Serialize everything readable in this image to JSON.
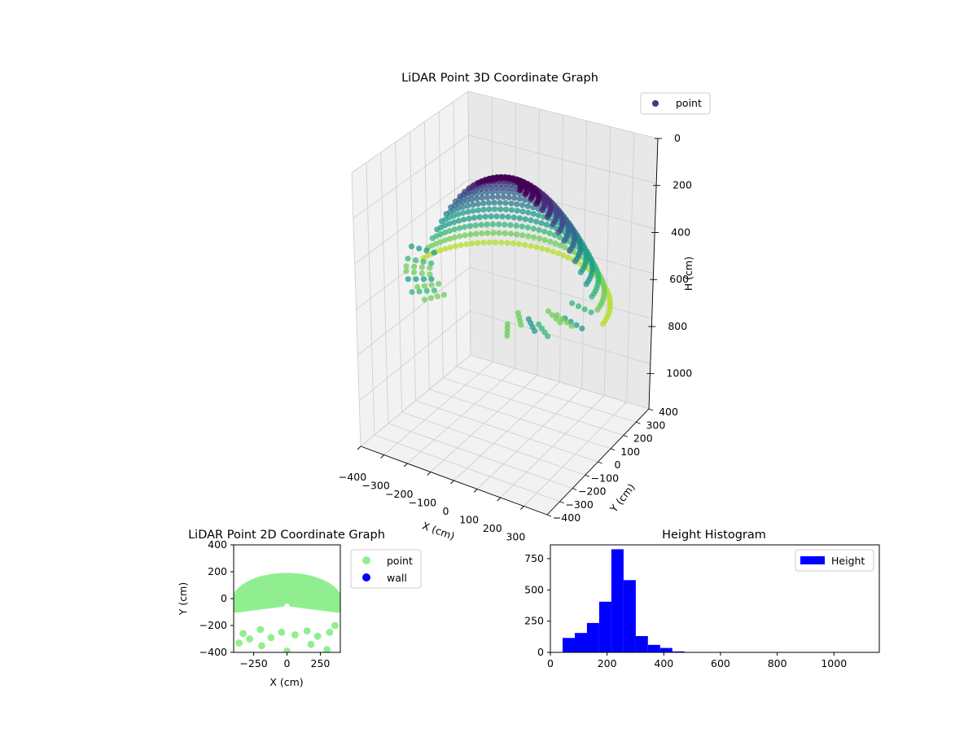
{
  "chart_data": [
    {
      "type": "scatter",
      "projection": "3d",
      "title": "LiDAR Point 3D Coordinate Graph",
      "xlabel": "X (cm)",
      "ylabel": "Y (cm)",
      "zlabel": "H (cm)",
      "x_ticks": [
        -400,
        -300,
        -200,
        -100,
        0,
        100,
        200,
        300
      ],
      "y_ticks": [
        -400,
        -300,
        -200,
        -100,
        0,
        100,
        200,
        300,
        400
      ],
      "z_ticks": [
        0,
        200,
        400,
        600,
        800,
        1000
      ],
      "xlim": [
        -400,
        400
      ],
      "ylim": [
        -400,
        400
      ],
      "zlim": [
        1150,
        0
      ],
      "legend": [
        {
          "name": "point",
          "color": "#443983"
        }
      ],
      "legend_position": "top-right",
      "colormap": "viridis",
      "grid": true
    },
    {
      "type": "scatter",
      "title": "LiDAR Point 2D Coordinate Graph",
      "xlabel": "X (cm)",
      "ylabel": "Y (cm)",
      "x_ticks": [
        -250,
        0,
        250
      ],
      "y_ticks": [
        -400,
        -200,
        0,
        200,
        400
      ],
      "xlim": [
        -400,
        400
      ],
      "ylim": [
        -400,
        400
      ],
      "legend": [
        {
          "name": "point",
          "color": "#90ee90"
        },
        {
          "name": "wall",
          "color": "#0000ff"
        }
      ],
      "legend_position": "outside-right"
    },
    {
      "type": "bar",
      "title": "Height Histogram",
      "x_ticks": [
        0,
        200,
        400,
        600,
        800,
        1000
      ],
      "y_ticks": [
        0,
        250,
        500,
        750
      ],
      "xlim": [
        0,
        1160
      ],
      "ylim": [
        0,
        860
      ],
      "bin_width": 43,
      "bins": [
        {
          "x0": 43,
          "value": 115
        },
        {
          "x0": 86,
          "value": 155
        },
        {
          "x0": 129,
          "value": 235
        },
        {
          "x0": 172,
          "value": 405
        },
        {
          "x0": 215,
          "value": 825
        },
        {
          "x0": 258,
          "value": 578
        },
        {
          "x0": 301,
          "value": 130
        },
        {
          "x0": 344,
          "value": 60
        },
        {
          "x0": 387,
          "value": 35
        },
        {
          "x0": 430,
          "value": 8
        }
      ],
      "legend": [
        {
          "name": "Height",
          "color": "#0000ff"
        }
      ],
      "legend_position": "top-right",
      "bar_color": "#0000ff"
    }
  ]
}
